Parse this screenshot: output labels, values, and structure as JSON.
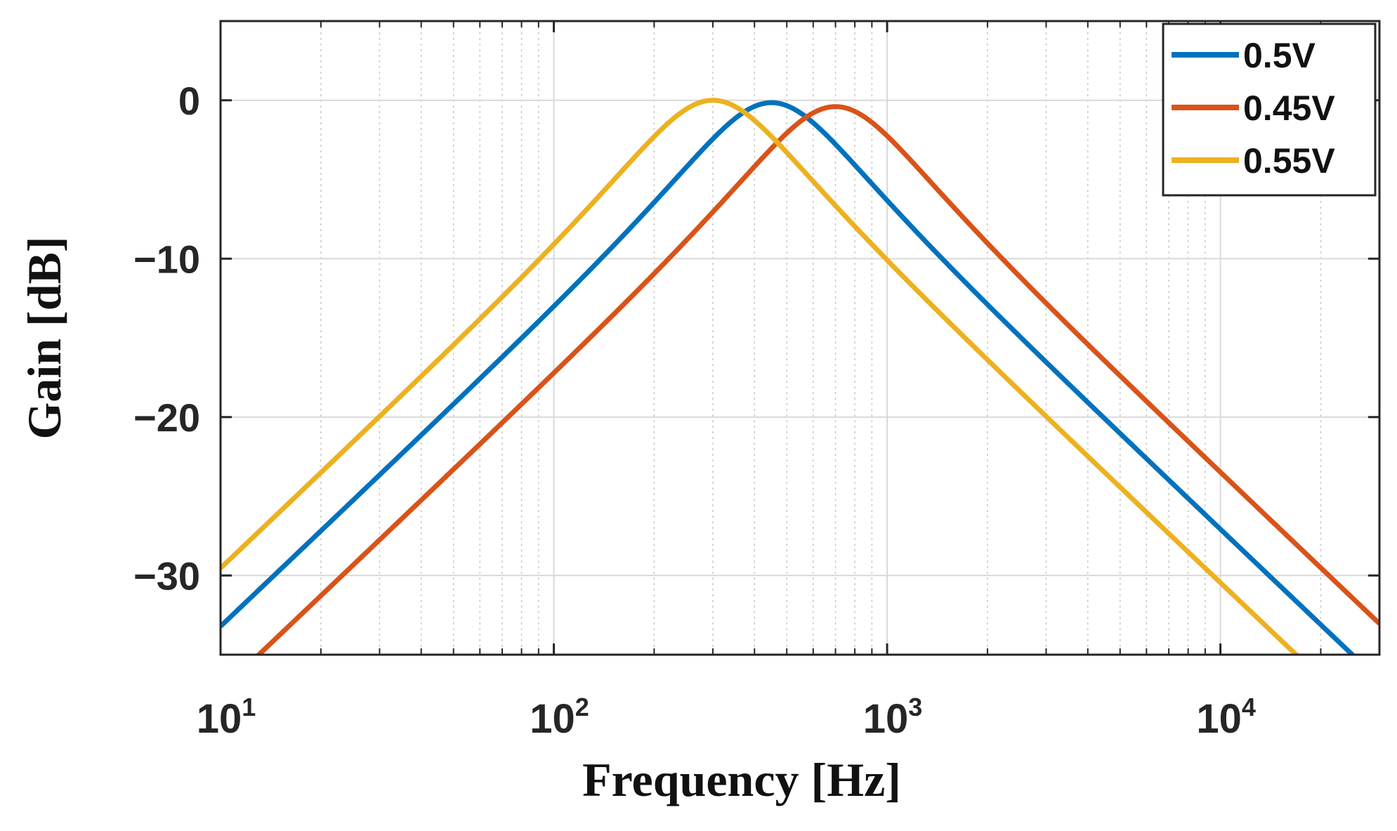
{
  "chart_data": {
    "type": "line",
    "title": "",
    "xlabel": "Frequency [Hz]",
    "ylabel": "Gain [dB]",
    "xscale": "log",
    "xlim": [
      10,
      30000
    ],
    "ylim": [
      -35,
      5
    ],
    "grid": true,
    "legend_position": "top-right",
    "x_ticks": [
      {
        "value": 10,
        "base": "10",
        "exp": "1"
      },
      {
        "value": 100,
        "base": "10",
        "exp": "2"
      },
      {
        "value": 1000,
        "base": "10",
        "exp": "3"
      },
      {
        "value": 10000,
        "base": "10",
        "exp": "4"
      }
    ],
    "y_ticks": [
      {
        "value": 0,
        "label": "0"
      },
      {
        "value": -10,
        "label": "−10"
      },
      {
        "value": -20,
        "label": "−20"
      },
      {
        "value": -30,
        "label": "−30"
      }
    ],
    "series": [
      {
        "name": "0.5V",
        "color": "#0072BD",
        "center_hz": 450,
        "peak_db": -0.15,
        "slope_db_per_decade": 20
      },
      {
        "name": "0.45V",
        "color": "#D95319",
        "center_hz": 700,
        "peak_db": -0.4,
        "slope_db_per_decade": 20
      },
      {
        "name": "0.55V",
        "color": "#EDB120",
        "center_hz": 300,
        "peak_db": 0.0,
        "slope_db_per_decade": 20
      }
    ]
  }
}
